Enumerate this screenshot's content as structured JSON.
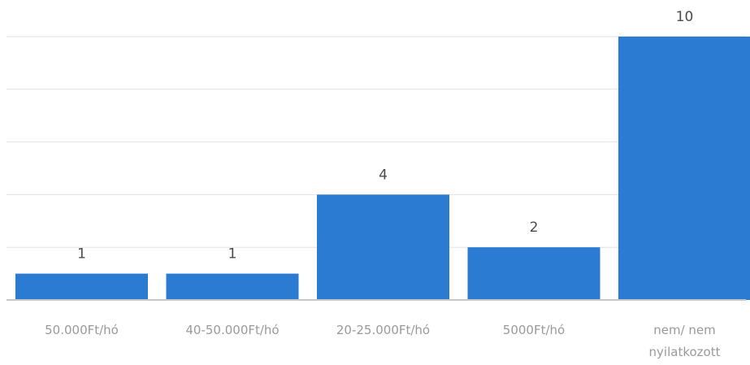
{
  "chart_data": {
    "type": "bar",
    "categories": [
      [
        "50.000Ft/hó"
      ],
      [
        "40-50.000Ft/hó"
      ],
      [
        "20-25.000Ft/hó"
      ],
      [
        "5000Ft/hó"
      ],
      [
        "nem/ nem",
        "nyilatkozott"
      ]
    ],
    "values": [
      1,
      1,
      4,
      2,
      10
    ],
    "title": "",
    "xlabel": "",
    "ylabel": "",
    "ylim": [
      0,
      10
    ],
    "grid": true,
    "bar_color": "#2a7bd1",
    "legend": "none"
  }
}
